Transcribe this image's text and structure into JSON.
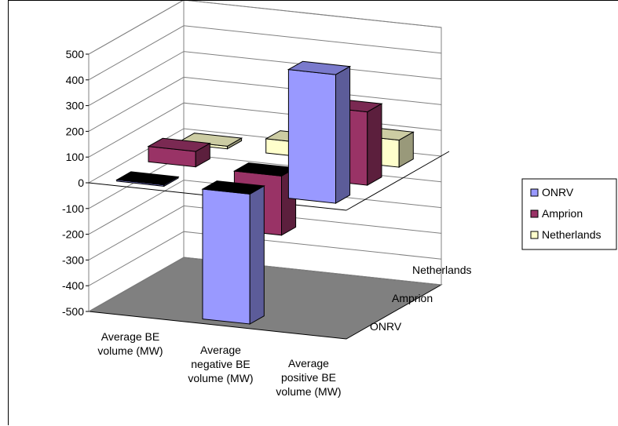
{
  "chart_data": {
    "type": "bar",
    "subtype": "3d-column",
    "categories": [
      "Average BE volume (MW)",
      "Average negative BE volume (MW)",
      "Average positive BE volume (MW)"
    ],
    "category_label_lines": [
      [
        "Average BE",
        "volume (MW)"
      ],
      [
        "Average",
        "negative BE",
        "volume (MW)"
      ],
      [
        "Average",
        "positive BE",
        "volume (MW)"
      ]
    ],
    "series": [
      {
        "name": "ONRV",
        "values": [
          -5,
          -505,
          500
        ],
        "color": "#9999ff"
      },
      {
        "name": "Amprion",
        "values": [
          60,
          -230,
          285
        ],
        "color": "#993366"
      },
      {
        "name": "Netherlands",
        "values": [
          10,
          55,
          105
        ],
        "color": "#ffffcc"
      }
    ],
    "depth_labels": [
      "ONRV",
      "Amprion",
      "Netherlands"
    ],
    "yticks": [
      500,
      400,
      300,
      200,
      100,
      0,
      -100,
      -200,
      -300,
      -400,
      -500
    ],
    "ylim": [
      -500,
      500
    ],
    "legend_position": "right",
    "grid": true,
    "floor_color": "#808080",
    "wall_color": "#ffffff"
  }
}
